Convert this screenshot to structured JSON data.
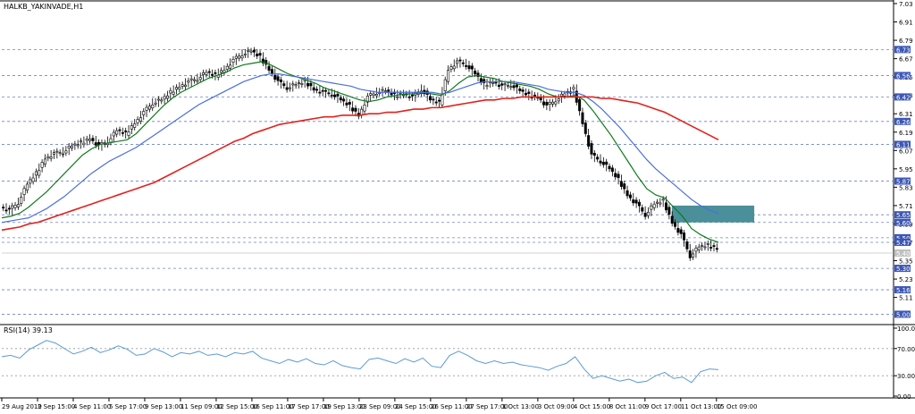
{
  "colors": {
    "background": "#ffffff",
    "grid_line": "#6f84c6",
    "candle": "#000000",
    "ma_fast": "#0f7a1a",
    "ma_mid": "#4a6fdc",
    "ma_slow": "#e3211c",
    "zone": "#4a8f99",
    "rsi_line": "#5b9bd5",
    "level_label_bg": "#3c57b6",
    "current_price_bg": "#c0c0c0"
  },
  "chart_data": [
    {
      "type": "line",
      "title": "HALKB_YAKINVADE,H1",
      "y_tick_labels": [
        "7.03",
        "6.91",
        "6.79",
        "6.67",
        "6.55",
        "6.43",
        "6.31",
        "6.19",
        "6.07",
        "5.95",
        "5.83",
        "5.71",
        "5.59",
        "5.47",
        "5.35",
        "5.23",
        "5.11"
      ],
      "level_labels": [
        "6.73",
        "6.56",
        "6.42",
        "6.26",
        "6.11",
        "5.87",
        "5.65",
        "5.50",
        "5.60",
        "5.47",
        "5.30",
        "5.16",
        "5.00"
      ],
      "current_price": "5.40",
      "ylim": [
        4.95,
        7.03
      ],
      "x_tick_labels": [
        "29 Aug 2019",
        "2 Sep 15:00",
        "4 Sep 11:00",
        "5 Sep 17:00",
        "9 Sep 13:00",
        "11 Sep 09:00",
        "12 Sep 15:00",
        "16 Sep 11:00",
        "17 Sep 17:00",
        "19 Sep 13:00",
        "23 Sep 09:00",
        "24 Sep 15:00",
        "26 Sep 11:00",
        "27 Sep 17:00",
        "1 Oct 13:00",
        "3 Oct 09:00",
        "4 Oct 15:00",
        "8 Oct 11:00",
        "9 Oct 17:00",
        "11 Oct 13:00",
        "15 Oct 09:00"
      ],
      "x": [
        0,
        5,
        10,
        15,
        20,
        25,
        30,
        35,
        40,
        45,
        50,
        55,
        60,
        65,
        70,
        75,
        80,
        85,
        90,
        95,
        100,
        105,
        110,
        115,
        120,
        125,
        130,
        135,
        140,
        145,
        150,
        155,
        160,
        165,
        170,
        175,
        180,
        185,
        190,
        195,
        200,
        205,
        210,
        215,
        220,
        225,
        230,
        235,
        240,
        245,
        250,
        255,
        260,
        265,
        270,
        275,
        280,
        285,
        290,
        295,
        300,
        305,
        310,
        315,
        320,
        325,
        330,
        335,
        340,
        345,
        350,
        355,
        360,
        365,
        370,
        375,
        380,
        385,
        390,
        395,
        400
      ],
      "series": [
        {
          "values": [
            5.7,
            5.68,
            5.73,
            5.85,
            5.92,
            6.02,
            6.05,
            6.06,
            6.1,
            6.12,
            6.15,
            6.1,
            6.13,
            6.2,
            6.18,
            6.25,
            6.32,
            6.38,
            6.4,
            6.45,
            6.49,
            6.52,
            6.54,
            6.58,
            6.56,
            6.6,
            6.66,
            6.7,
            6.72,
            6.68,
            6.6,
            6.52,
            6.48,
            6.5,
            6.52,
            6.47,
            6.45,
            6.44,
            6.4,
            6.36,
            6.3,
            6.42,
            6.45,
            6.46,
            6.43,
            6.44,
            6.42,
            6.47,
            6.4,
            6.38,
            6.6,
            6.65,
            6.63,
            6.57,
            6.5,
            6.52,
            6.49,
            6.5,
            6.46,
            6.43,
            6.42,
            6.36,
            6.4,
            6.44,
            6.47,
            6.25,
            6.04,
            6.0,
            5.95,
            5.88,
            5.78,
            5.72,
            5.65,
            5.72,
            5.74,
            5.6,
            5.52,
            5.38,
            5.44,
            5.45,
            5.43
          ]
        },
        {
          "values": [
            5.63,
            5.64,
            5.66,
            5.7,
            5.75,
            5.8,
            5.86,
            5.92,
            5.98,
            6.04,
            6.08,
            6.11,
            6.12,
            6.13,
            6.14,
            6.18,
            6.24,
            6.3,
            6.36,
            6.41,
            6.45,
            6.48,
            6.51,
            6.54,
            6.56,
            6.58,
            6.61,
            6.63,
            6.64,
            6.65,
            6.63,
            6.6,
            6.57,
            6.55,
            6.53,
            6.51,
            6.48,
            6.46,
            6.44,
            6.42,
            6.4,
            6.39,
            6.4,
            6.42,
            6.43,
            6.44,
            6.44,
            6.45,
            6.44,
            6.43,
            6.46,
            6.51,
            6.55,
            6.56,
            6.55,
            6.54,
            6.52,
            6.51,
            6.5,
            6.49,
            6.47,
            6.44,
            6.42,
            6.42,
            6.43,
            6.4,
            6.33,
            6.25,
            6.17,
            6.08,
            5.99,
            5.9,
            5.82,
            5.78,
            5.76,
            5.7,
            5.64,
            5.56,
            5.52,
            5.49,
            5.47
          ]
        },
        {
          "values": [
            5.6,
            5.61,
            5.62,
            5.63,
            5.66,
            5.69,
            5.73,
            5.77,
            5.82,
            5.87,
            5.92,
            5.96,
            6.0,
            6.03,
            6.06,
            6.09,
            6.13,
            6.17,
            6.21,
            6.25,
            6.29,
            6.33,
            6.37,
            6.4,
            6.43,
            6.46,
            6.49,
            6.52,
            6.54,
            6.56,
            6.57,
            6.57,
            6.56,
            6.55,
            6.54,
            6.53,
            6.52,
            6.51,
            6.5,
            6.49,
            6.47,
            6.46,
            6.45,
            6.45,
            6.45,
            6.45,
            6.45,
            6.45,
            6.45,
            6.44,
            6.45,
            6.47,
            6.49,
            6.51,
            6.52,
            6.52,
            6.52,
            6.52,
            6.51,
            6.5,
            6.49,
            6.47,
            6.46,
            6.45,
            6.45,
            6.43,
            6.39,
            6.34,
            6.28,
            6.22,
            6.15,
            6.08,
            6.01,
            5.95,
            5.9,
            5.85,
            5.8,
            5.75,
            5.71,
            5.68,
            5.66
          ]
        },
        {
          "values": [
            5.55,
            5.56,
            5.57,
            5.59,
            5.6,
            5.62,
            5.64,
            5.66,
            5.68,
            5.7,
            5.72,
            5.74,
            5.76,
            5.78,
            5.8,
            5.82,
            5.84,
            5.86,
            5.89,
            5.92,
            5.95,
            5.98,
            6.01,
            6.04,
            6.07,
            6.1,
            6.13,
            6.15,
            6.18,
            6.2,
            6.22,
            6.24,
            6.25,
            6.26,
            6.27,
            6.28,
            6.29,
            6.29,
            6.3,
            6.3,
            6.3,
            6.31,
            6.31,
            6.32,
            6.32,
            6.33,
            6.34,
            6.34,
            6.35,
            6.35,
            6.36,
            6.37,
            6.38,
            6.39,
            6.4,
            6.4,
            6.41,
            6.41,
            6.42,
            6.42,
            6.42,
            6.42,
            6.42,
            6.42,
            6.42,
            6.42,
            6.42,
            6.41,
            6.41,
            6.4,
            6.39,
            6.38,
            6.36,
            6.34,
            6.32,
            6.29,
            6.26,
            6.23,
            6.2,
            6.17,
            6.14
          ]
        }
      ],
      "zone": {
        "y_range": [
          5.6,
          5.71
        ],
        "x_range": [
          374,
          420
        ]
      }
    },
    {
      "type": "line",
      "title": "RSI(14) 39.13",
      "y_tick_labels": [
        "100.00",
        "70.00",
        "30.00",
        "0.00"
      ],
      "ylim": [
        0,
        100
      ],
      "x": [
        0,
        5,
        10,
        15,
        20,
        25,
        30,
        35,
        40,
        45,
        50,
        55,
        60,
        65,
        70,
        75,
        80,
        85,
        90,
        95,
        100,
        105,
        110,
        115,
        120,
        125,
        130,
        135,
        140,
        145,
        150,
        155,
        160,
        165,
        170,
        175,
        180,
        185,
        190,
        195,
        200,
        205,
        210,
        215,
        220,
        225,
        230,
        235,
        240,
        245,
        250,
        255,
        260,
        265,
        270,
        275,
        280,
        285,
        290,
        295,
        300,
        305,
        310,
        315,
        320,
        325,
        330,
        335,
        340,
        345,
        350,
        355,
        360,
        365,
        370,
        375,
        380,
        385,
        390,
        395,
        400
      ],
      "series": [
        {
          "values": [
            58,
            60,
            56,
            68,
            75,
            82,
            78,
            70,
            62,
            66,
            72,
            64,
            68,
            74,
            69,
            60,
            62,
            70,
            65,
            58,
            64,
            62,
            66,
            60,
            62,
            58,
            64,
            62,
            66,
            56,
            52,
            48,
            54,
            50,
            55,
            48,
            46,
            52,
            45,
            42,
            40,
            54,
            56,
            52,
            48,
            55,
            50,
            56,
            44,
            42,
            60,
            66,
            60,
            52,
            48,
            52,
            48,
            50,
            46,
            44,
            42,
            38,
            44,
            48,
            58,
            40,
            26,
            30,
            26,
            22,
            25,
            20,
            22,
            30,
            35,
            26,
            28,
            20,
            36,
            40,
            39
          ]
        }
      ]
    }
  ]
}
